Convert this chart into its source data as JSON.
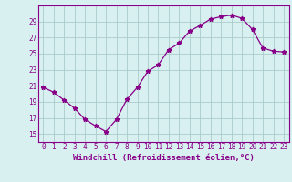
{
  "x": [
    0,
    1,
    2,
    3,
    4,
    5,
    6,
    7,
    8,
    9,
    10,
    11,
    12,
    13,
    14,
    15,
    16,
    17,
    18,
    19,
    20,
    21,
    22,
    23
  ],
  "y": [
    20.8,
    20.2,
    19.2,
    18.2,
    16.8,
    16.0,
    15.3,
    16.8,
    19.3,
    20.8,
    22.8,
    23.6,
    25.5,
    26.3,
    27.8,
    28.5,
    29.3,
    29.6,
    29.8,
    29.4,
    28.0,
    25.7,
    25.3,
    25.2
  ],
  "line_color": "#880088",
  "marker": "*",
  "marker_size": 3.5,
  "bg_color": "#d8f0f0",
  "grid_color": "#aacccc",
  "axis_color": "#880088",
  "xlabel": "Windchill (Refroidissement éolien,°C)",
  "ylim": [
    14,
    31
  ],
  "yticks": [
    15,
    17,
    19,
    21,
    23,
    25,
    27,
    29
  ],
  "xticks": [
    0,
    1,
    2,
    3,
    4,
    5,
    6,
    7,
    8,
    9,
    10,
    11,
    12,
    13,
    14,
    15,
    16,
    17,
    18,
    19,
    20,
    21,
    22,
    23
  ],
  "tick_fontsize": 5.5,
  "xlabel_fontsize": 6.5
}
